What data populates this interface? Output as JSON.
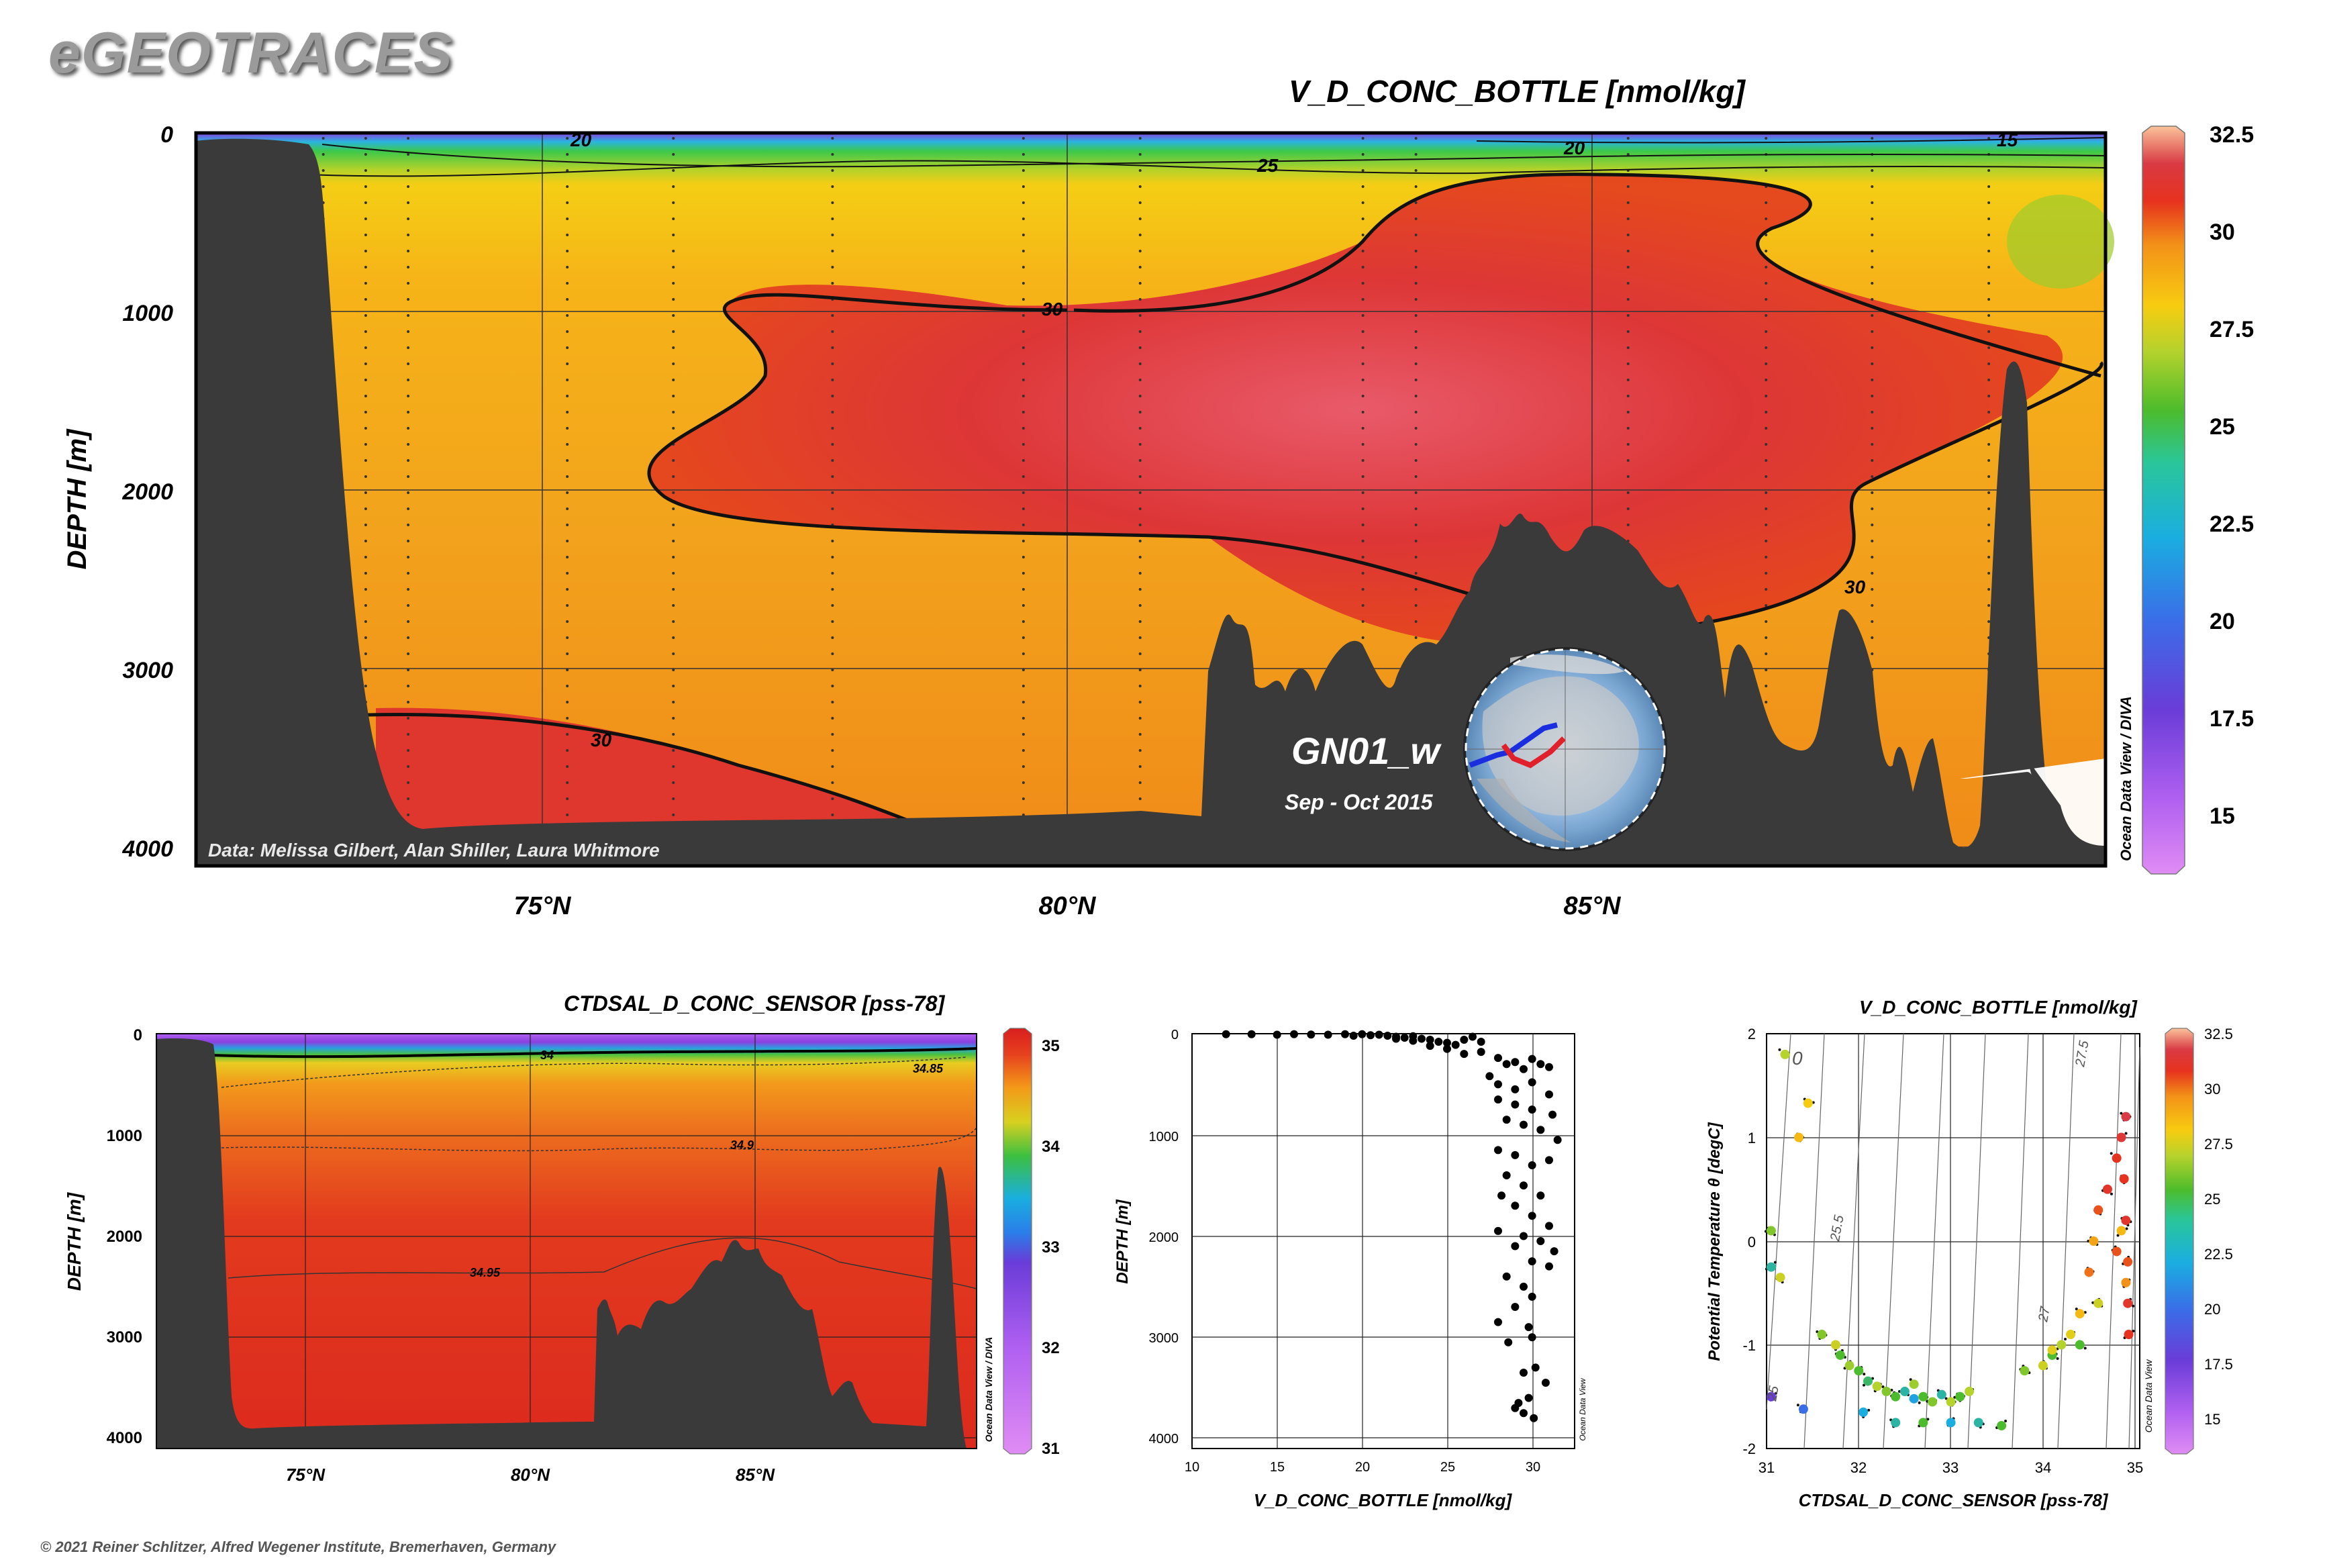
{
  "header": {
    "app_title": "eGEOTRACES"
  },
  "footer": {
    "copyright": "© 2021 Reiner Schlitzer, Alfred Wegener Institute, Bremerhaven, Germany"
  },
  "main_section": {
    "title": "V_D_CONC_BOTTLE [nmol/kg]",
    "ylabel": "DEPTH [m]",
    "data_credit": "Data: Melissa Gilbert, Alan Shiller, Laura Whitmore",
    "watermark": "Ocean Data View / DIVA",
    "cruise": "GN01_w",
    "cruise_dates": "Sep - Oct 2015",
    "y_ticks": [
      "0",
      "1000",
      "2000",
      "3000",
      "4000"
    ],
    "x_ticks": [
      "75°N",
      "80°N",
      "85°N"
    ],
    "colorbar_ticks": [
      "32.5",
      "30",
      "27.5",
      "25",
      "22.5",
      "20",
      "17.5",
      "15"
    ],
    "contour_labels": [
      "20",
      "20",
      "25",
      "30",
      "30",
      "30",
      "15"
    ]
  },
  "salinity_section": {
    "title": "CTDSAL_D_CONC_SENSOR [pss-78]",
    "ylabel": "DEPTH [m]",
    "watermark": "Ocean Data View / DIVA",
    "y_ticks": [
      "0",
      "1000",
      "2000",
      "3000",
      "4000"
    ],
    "x_ticks": [
      "75°N",
      "80°N",
      "85°N"
    ],
    "colorbar_ticks": [
      "35",
      "34",
      "33",
      "32",
      "31"
    ],
    "contour_labels": [
      "34",
      "34.85",
      "34.9",
      "34.95"
    ]
  },
  "profile_plot": {
    "xlabel": "V_D_CONC_BOTTLE [nmol/kg]",
    "ylabel": "DEPTH [m]",
    "watermark": "Ocean Data View",
    "x_ticks": [
      "10",
      "15",
      "20",
      "25",
      "30"
    ],
    "y_ticks": [
      "0",
      "1000",
      "2000",
      "3000",
      "4000"
    ]
  },
  "ts_plot": {
    "title": "V_D_CONC_BOTTLE [nmol/kg]",
    "xlabel": "CTDSAL_D_CONC_SENSOR [pss-78]",
    "ylabel": "Potential Temperature θ [degC]",
    "watermark": "Ocean Data View",
    "x_ticks": [
      "31",
      "32",
      "33",
      "34",
      "35"
    ],
    "y_ticks": [
      "2",
      "1",
      "0",
      "-1",
      "-2"
    ],
    "colorbar_ticks": [
      "32.5",
      "30",
      "27.5",
      "25",
      "22.5",
      "20",
      "17.5",
      "15"
    ],
    "isopycnal_labels": [
      "0",
      "25.5",
      "27",
      "27.5",
      "25"
    ]
  },
  "chart_data": [
    {
      "type": "heatmap",
      "title": "V_D_CONC_BOTTLE [nmol/kg]",
      "xlabel": "",
      "ylabel": "DEPTH [m]",
      "xlim": [
        71.5,
        89.5
      ],
      "ylim": [
        4100,
        0
      ],
      "colorbar_range": [
        14,
        33
      ],
      "x_ticks": [
        75,
        80,
        85
      ],
      "y_ticks": [
        0,
        1000,
        2000,
        3000,
        4000
      ],
      "contour_levels": [
        15,
        20,
        25,
        30
      ],
      "sample_profiles_lat": [
        72.7,
        73.1,
        73.5,
        75.0,
        76.0,
        77.5,
        79.3,
        80.4,
        82.5,
        83.0,
        85.0,
        86.3,
        87.3,
        88.4
      ]
    },
    {
      "type": "heatmap",
      "title": "CTDSAL_D_CONC_SENSOR [pss-78]",
      "xlabel": "",
      "ylabel": "DEPTH [m]",
      "xlim": [
        71.5,
        89.5
      ],
      "ylim": [
        4100,
        0
      ],
      "colorbar_range": [
        31,
        35
      ],
      "x_ticks": [
        75,
        80,
        85
      ],
      "y_ticks": [
        0,
        1000,
        2000,
        3000,
        4000
      ],
      "contour_levels": [
        34,
        34.85,
        34.9,
        34.95
      ]
    },
    {
      "type": "scatter",
      "xlabel": "V_D_CONC_BOTTLE [nmol/kg]",
      "ylabel": "DEPTH [m]",
      "xlim": [
        10,
        32.5
      ],
      "ylim": [
        4100,
        0
      ],
      "x_ticks": [
        10,
        15,
        20,
        25,
        30
      ],
      "y_ticks": [
        0,
        1000,
        2000,
        3000,
        4000
      ],
      "points": [
        [
          12,
          5
        ],
        [
          13.5,
          5
        ],
        [
          15,
          10
        ],
        [
          16,
          5
        ],
        [
          17,
          8
        ],
        [
          18,
          10
        ],
        [
          19,
          5
        ],
        [
          19.5,
          20
        ],
        [
          20,
          5
        ],
        [
          20.5,
          15
        ],
        [
          21,
          10
        ],
        [
          21.5,
          20
        ],
        [
          22,
          30
        ],
        [
          22.5,
          40
        ],
        [
          23,
          25
        ],
        [
          23.5,
          50
        ],
        [
          24,
          60
        ],
        [
          24.5,
          80
        ],
        [
          25,
          90
        ],
        [
          25.5,
          110
        ],
        [
          26,
          60
        ],
        [
          26.5,
          30
        ],
        [
          27,
          80
        ],
        [
          25,
          150
        ],
        [
          24,
          120
        ],
        [
          23,
          70
        ],
        [
          22,
          50
        ],
        [
          26,
          200
        ],
        [
          27,
          180
        ],
        [
          28,
          240
        ],
        [
          28.5,
          300
        ],
        [
          29,
          280
        ],
        [
          29.5,
          350
        ],
        [
          30,
          250
        ],
        [
          30.5,
          300
        ],
        [
          31,
          330
        ],
        [
          27.5,
          420
        ],
        [
          28,
          500
        ],
        [
          29,
          550
        ],
        [
          30,
          480
        ],
        [
          31,
          600
        ],
        [
          28,
          650
        ],
        [
          29,
          700
        ],
        [
          30,
          750
        ],
        [
          31.2,
          800
        ],
        [
          28.5,
          850
        ],
        [
          29.5,
          900
        ],
        [
          30.5,
          950
        ],
        [
          31.5,
          1050
        ],
        [
          28,
          1150
        ],
        [
          29,
          1200
        ],
        [
          30,
          1300
        ],
        [
          31,
          1250
        ],
        [
          28.5,
          1400
        ],
        [
          29.5,
          1500
        ],
        [
          30.5,
          1600
        ],
        [
          28.2,
          1600
        ],
        [
          29,
          1700
        ],
        [
          30,
          1800
        ],
        [
          31,
          1900
        ],
        [
          29.5,
          2000
        ],
        [
          30.5,
          2050
        ],
        [
          31.3,
          2150
        ],
        [
          28,
          1950
        ],
        [
          29,
          2100
        ],
        [
          30,
          2250
        ],
        [
          31,
          2300
        ],
        [
          28.5,
          2400
        ],
        [
          29.5,
          2500
        ],
        [
          30,
          2600
        ],
        [
          29,
          2700
        ],
        [
          28,
          2850
        ],
        [
          29.8,
          2900
        ],
        [
          30,
          3000
        ],
        [
          28.6,
          3050
        ],
        [
          30.2,
          3300
        ],
        [
          29.5,
          3350
        ],
        [
          30.8,
          3450
        ],
        [
          29.8,
          3600
        ],
        [
          29,
          3700
        ],
        [
          29.5,
          3750
        ],
        [
          30.1,
          3800
        ],
        [
          29.2,
          3650
        ]
      ]
    },
    {
      "type": "scatter",
      "title": "V_D_CONC_BOTTLE [nmol/kg]",
      "xlabel": "CTDSAL_D_CONC_SENSOR [pss-78]",
      "ylabel": "Potential Temperature θ [degC]",
      "xlim": [
        31,
        35.05
      ],
      "ylim": [
        -2,
        2
      ],
      "colorbar_range": [
        14,
        33
      ],
      "x_ticks": [
        31,
        32,
        33,
        34,
        35
      ],
      "y_ticks": [
        -2,
        -1,
        0,
        1,
        2
      ],
      "points": [
        [
          31.2,
          1.8,
          26
        ],
        [
          31.45,
          1.33,
          27.5
        ],
        [
          31.35,
          1.0,
          28
        ],
        [
          31.05,
          0.1,
          25
        ],
        [
          31.15,
          -0.35,
          26.5
        ],
        [
          31.05,
          -0.25,
          23
        ],
        [
          31.4,
          -1.62,
          20
        ],
        [
          31.05,
          -1.5,
          17
        ],
        [
          31.6,
          -0.9,
          25
        ],
        [
          31.75,
          -1.0,
          26.5
        ],
        [
          31.8,
          -1.1,
          24
        ],
        [
          31.9,
          -1.2,
          25.5
        ],
        [
          32.0,
          -1.25,
          24
        ],
        [
          32.1,
          -1.35,
          23.5
        ],
        [
          32.2,
          -1.4,
          26
        ],
        [
          32.3,
          -1.45,
          25
        ],
        [
          32.4,
          -1.5,
          24
        ],
        [
          32.5,
          -1.45,
          23
        ],
        [
          32.6,
          -1.52,
          22
        ],
        [
          32.7,
          -1.5,
          24
        ],
        [
          32.8,
          -1.55,
          25
        ],
        [
          32.9,
          -1.48,
          23
        ],
        [
          33.0,
          -1.55,
          26
        ],
        [
          33.1,
          -1.5,
          24
        ],
        [
          33.3,
          -1.75,
          23
        ],
        [
          33.55,
          -1.78,
          24
        ],
        [
          33.0,
          -1.75,
          22.5
        ],
        [
          32.7,
          -1.75,
          24
        ],
        [
          32.4,
          -1.75,
          23
        ],
        [
          32.05,
          -1.65,
          22.5
        ],
        [
          33.8,
          -1.25,
          25
        ],
        [
          34.0,
          -1.2,
          26.5
        ],
        [
          34.1,
          -1.1,
          24
        ],
        [
          34.2,
          -1.0,
          26
        ],
        [
          34.3,
          -0.9,
          27
        ],
        [
          34.4,
          -0.7,
          28
        ],
        [
          34.5,
          -0.3,
          29.5
        ],
        [
          34.55,
          0.0,
          28.5
        ],
        [
          34.6,
          0.3,
          30
        ],
        [
          34.7,
          0.5,
          31
        ],
        [
          34.8,
          0.8,
          30.5
        ],
        [
          34.85,
          1.0,
          31.5
        ],
        [
          34.9,
          1.2,
          32
        ],
        [
          34.88,
          0.6,
          30.5
        ],
        [
          34.9,
          0.2,
          31
        ],
        [
          34.92,
          -0.2,
          30
        ],
        [
          34.92,
          -0.6,
          31
        ],
        [
          34.93,
          -0.9,
          30.5
        ],
        [
          34.9,
          -0.4,
          29
        ],
        [
          34.85,
          0.1,
          28
        ],
        [
          34.8,
          -0.1,
          30
        ],
        [
          34.6,
          -0.6,
          26.5
        ],
        [
          34.4,
          -1.0,
          24
        ],
        [
          34.1,
          -1.05,
          27
        ],
        [
          33.2,
          -1.45,
          26
        ],
        [
          32.6,
          -1.38,
          25.5
        ]
      ]
    }
  ]
}
